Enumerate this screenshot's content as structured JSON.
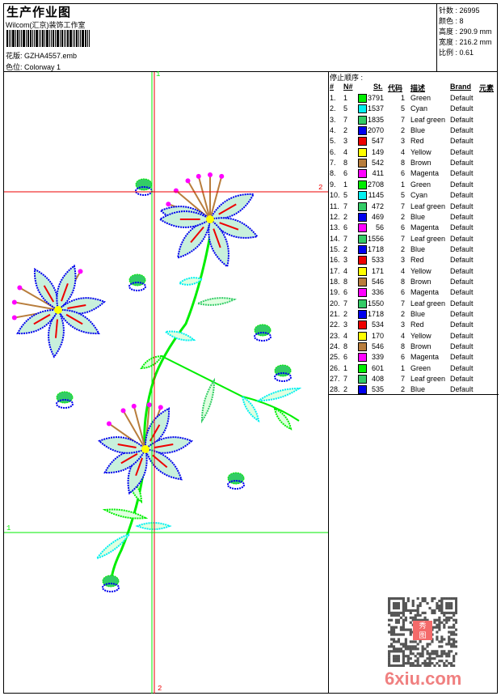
{
  "header": {
    "title": "生产作业图",
    "company": "Wilcom(汇京)装饰工作室",
    "design_label": "花版:",
    "design_value": "GZHA4557.emb",
    "colorway_label": "色位:",
    "colorway_value": "Colorway 1"
  },
  "info": {
    "stitches": "针数 : 26995",
    "colors": "颜色 : 8",
    "height": "高度 : 290.9 mm",
    "width": "宽度 : 216.2 mm",
    "scale": "比例 : 0.61"
  },
  "guides": {
    "h1": "1",
    "h2": "2",
    "v1": "1",
    "v2": "2"
  },
  "table": {
    "title": "停止顺序 :",
    "headers": [
      "#",
      "N#",
      "St.",
      "代码",
      "描述",
      "Brand",
      "元素"
    ],
    "rows": [
      [
        "1.",
        "1",
        "#00ee00",
        "3791",
        "1",
        "Green",
        "Default"
      ],
      [
        "2.",
        "5",
        "#00f0f0",
        "1537",
        "5",
        "Cyan",
        "Default"
      ],
      [
        "3.",
        "7",
        "#33cc66",
        "1835",
        "7",
        "Leaf green",
        "Default"
      ],
      [
        "4.",
        "2",
        "#0000ee",
        "2070",
        "2",
        "Blue",
        "Default"
      ],
      [
        "5.",
        "3",
        "#ee0000",
        "547",
        "3",
        "Red",
        "Default"
      ],
      [
        "6.",
        "4",
        "#ffff00",
        "149",
        "4",
        "Yellow",
        "Default"
      ],
      [
        "7.",
        "8",
        "#b87d3c",
        "542",
        "8",
        "Brown",
        "Default"
      ],
      [
        "8.",
        "6",
        "#ff00ff",
        "411",
        "6",
        "Magenta",
        "Default"
      ],
      [
        "9.",
        "1",
        "#00ee00",
        "2708",
        "1",
        "Green",
        "Default"
      ],
      [
        "10.",
        "5",
        "#00f0f0",
        "1145",
        "5",
        "Cyan",
        "Default"
      ],
      [
        "11.",
        "7",
        "#33cc66",
        "472",
        "7",
        "Leaf green",
        "Default"
      ],
      [
        "12.",
        "2",
        "#0000ee",
        "469",
        "2",
        "Blue",
        "Default"
      ],
      [
        "13.",
        "6",
        "#ff00ff",
        "56",
        "6",
        "Magenta",
        "Default"
      ],
      [
        "14.",
        "7",
        "#33cc66",
        "1556",
        "7",
        "Leaf green",
        "Default"
      ],
      [
        "15.",
        "2",
        "#0000ee",
        "1718",
        "2",
        "Blue",
        "Default"
      ],
      [
        "16.",
        "3",
        "#ee0000",
        "533",
        "3",
        "Red",
        "Default"
      ],
      [
        "17.",
        "4",
        "#ffff00",
        "171",
        "4",
        "Yellow",
        "Default"
      ],
      [
        "18.",
        "8",
        "#b87d3c",
        "546",
        "8",
        "Brown",
        "Default"
      ],
      [
        "19.",
        "6",
        "#ff00ff",
        "336",
        "6",
        "Magenta",
        "Default"
      ],
      [
        "20.",
        "7",
        "#33cc66",
        "1550",
        "7",
        "Leaf green",
        "Default"
      ],
      [
        "21.",
        "2",
        "#0000ee",
        "1718",
        "2",
        "Blue",
        "Default"
      ],
      [
        "22.",
        "3",
        "#ee0000",
        "534",
        "3",
        "Red",
        "Default"
      ],
      [
        "23.",
        "4",
        "#ffff00",
        "170",
        "4",
        "Yellow",
        "Default"
      ],
      [
        "24.",
        "8",
        "#b87d3c",
        "546",
        "8",
        "Brown",
        "Default"
      ],
      [
        "25.",
        "6",
        "#ff00ff",
        "339",
        "6",
        "Magenta",
        "Default"
      ],
      [
        "26.",
        "1",
        "#00ee00",
        "601",
        "1",
        "Green",
        "Default"
      ],
      [
        "27.",
        "7",
        "#33cc66",
        "408",
        "7",
        "Leaf green",
        "Default"
      ],
      [
        "28.",
        "2",
        "#0000ee",
        "535",
        "2",
        "Blue",
        "Default"
      ]
    ]
  },
  "watermark": {
    "text": "6xiu.com",
    "seal": "秀图"
  }
}
